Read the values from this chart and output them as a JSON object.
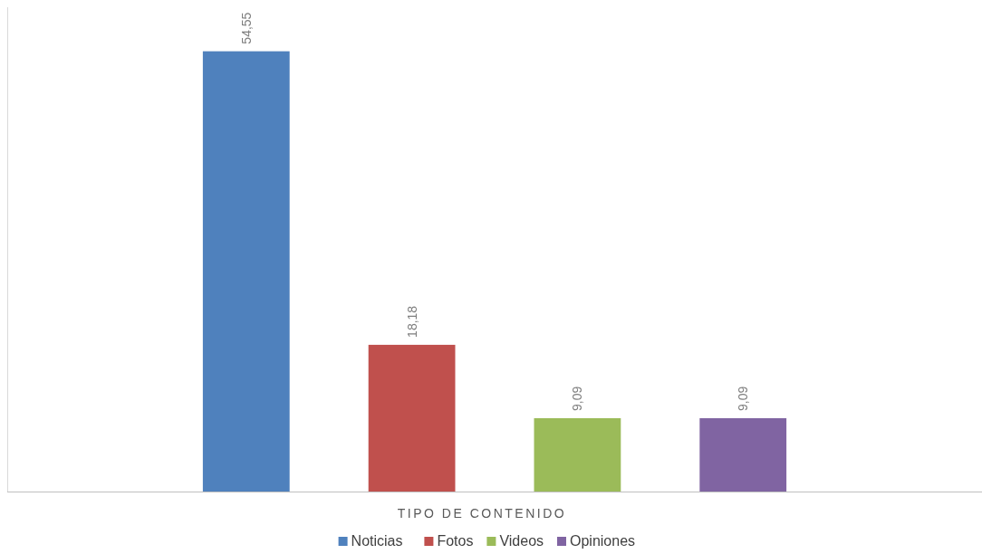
{
  "chart_data": {
    "type": "bar",
    "xlabel": "TIPO DE CONTENIDO",
    "categories": [
      null,
      null,
      null,
      null
    ],
    "stacked": true,
    "series": [
      {
        "name": "Noticias",
        "color": "#4f81bd",
        "values": [
          54.55,
          null,
          null,
          null
        ],
        "value_labels": [
          "54,55",
          null,
          null,
          null
        ]
      },
      {
        "name": "Fotos",
        "color": "#c0504d",
        "values": [
          null,
          18.18,
          null,
          null
        ],
        "value_labels": [
          null,
          "18,18",
          null,
          null
        ]
      },
      {
        "name": "Videos",
        "color": "#9bbb59",
        "values": [
          null,
          null,
          9.09,
          null
        ],
        "value_labels": [
          null,
          null,
          "9,09",
          null
        ]
      },
      {
        "name": "Opiniones",
        "color": "#8064a2",
        "values": [
          null,
          null,
          null,
          9.09
        ],
        "value_labels": [
          null,
          null,
          null,
          "9,09"
        ]
      }
    ],
    "legend": "bottom"
  }
}
